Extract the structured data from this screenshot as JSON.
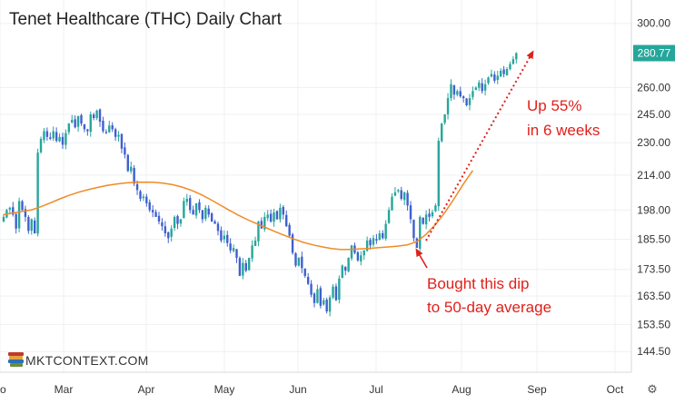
{
  "chart_data": {
    "type": "candlestick",
    "title": "Tenet Healthcare (THC) Daily Chart",
    "y_axis": {
      "scale": "log",
      "ticks": [
        "300.00",
        "260.00",
        "245.00",
        "230.00",
        "214.00",
        "198.00",
        "185.50",
        "173.50",
        "163.50",
        "153.50",
        "144.50"
      ],
      "range": [
        138,
        316
      ]
    },
    "x_axis": {
      "ticks": [
        "Feb",
        "Mar",
        "Apr",
        "May",
        "Jun",
        "Jul",
        "Aug",
        "Sep",
        "Oct"
      ],
      "visible_tick_text": [
        "o",
        "Mar",
        "Apr",
        "May",
        "Jun",
        "Jul",
        "Aug",
        "Sep",
        "Oct"
      ]
    },
    "last_price": {
      "label": "280.77",
      "value": 280.77,
      "color": "#26a69a"
    },
    "colors": {
      "up": "#26a69a",
      "down": "#3f5fd0",
      "ma50": "#f08a24",
      "annotation": "#e0201b"
    },
    "series": [
      {
        "name": "Daily",
        "kind": "candles",
        "closes": [
          195.0,
          198.0,
          199.0,
          196.0,
          190.0,
          202.0,
          198.0,
          195.0,
          189.0,
          194.0,
          188.0,
          225.0,
          232.0,
          236.0,
          233.0,
          232.0,
          236.0,
          231.0,
          233.0,
          229.0,
          235.0,
          240.0,
          242.0,
          238.0,
          244.0,
          240.0,
          237.0,
          236.0,
          245.0,
          243.0,
          247.0,
          241.0,
          236.0,
          235.0,
          239.0,
          237.0,
          233.0,
          234.0,
          227.0,
          224.0,
          216.0,
          218.0,
          210.0,
          207.0,
          203.0,
          204.0,
          201.0,
          198.0,
          197.0,
          195.0,
          193.0,
          191.0,
          188.0,
          186.0,
          190.0,
          195.0,
          192.0,
          194.0,
          202.0,
          203.0,
          198.0,
          196.0,
          201.0,
          198.0,
          194.0,
          199.0,
          196.0,
          193.0,
          192.0,
          189.0,
          185.0,
          187.0,
          184.0,
          181.0,
          182.0,
          178.0,
          171.0,
          176.0,
          173.0,
          178.0,
          183.0,
          185.0,
          193.0,
          190.0,
          195.0,
          196.0,
          193.0,
          197.0,
          194.0,
          199.0,
          196.0,
          191.0,
          187.0,
          180.0,
          175.0,
          178.0,
          174.0,
          171.0,
          168.0,
          164.0,
          161.0,
          166.0,
          160.0,
          162.0,
          158.0,
          163.0,
          167.0,
          162.0,
          170.0,
          175.0,
          173.0,
          178.0,
          183.0,
          180.0,
          177.0,
          179.0,
          181.0,
          185.0,
          183.0,
          186.0,
          185.0,
          188.0,
          186.0,
          192.0,
          198.0,
          204.0,
          206.0,
          207.0,
          203.0,
          206.0,
          200.0,
          194.0,
          186.0,
          182.0,
          195.0,
          192.0,
          196.0,
          195.0,
          197.0,
          200.0,
          231.0,
          240.0,
          245.0,
          254.0,
          262.0,
          256.0,
          258.0,
          255.0,
          254.0,
          250.0,
          254.0,
          258.0,
          260.0,
          263.0,
          258.0,
          262.0,
          266.0,
          268.0,
          264.0,
          267.0,
          270.0,
          268.0,
          271.0,
          274.0,
          277.0,
          280.77
        ]
      },
      {
        "name": "50-day average",
        "kind": "line",
        "values": [
          196.0,
          196.7,
          197.4,
          198.1,
          199.5,
          201.2,
          203.0,
          204.6,
          206.0,
          207.2,
          208.2,
          209.1,
          209.8,
          210.3,
          210.6,
          210.7,
          210.6,
          210.2,
          209.5,
          208.4,
          206.9,
          205.0,
          202.8,
          200.4,
          198.0,
          195.8,
          193.8,
          192.0,
          190.3,
          188.6,
          187.0,
          185.5,
          184.2,
          183.2,
          182.4,
          181.7,
          181.3,
          181.4,
          181.6,
          181.8,
          182.1,
          182.4,
          182.7,
          183.2,
          184.5,
          187.5,
          191.6,
          196.8,
          203.0,
          209.8,
          216.2
        ]
      }
    ]
  },
  "annotations": {
    "up": {
      "line1": "Up 55%",
      "line2": "in 6 weeks"
    },
    "dip": {
      "line1": "Bought this dip",
      "line2": "to 50-day average"
    }
  },
  "branding": {
    "name": "MKTCONTEXT.COM",
    "logo_icon": "stacked-books-icon"
  },
  "corner_icon": {
    "symbol": "⚙",
    "name": "settings-icon"
  }
}
